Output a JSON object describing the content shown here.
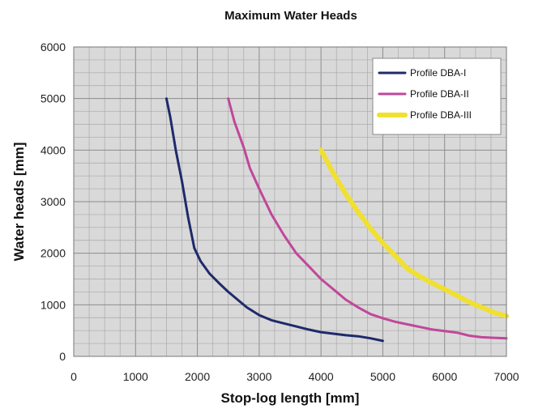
{
  "chart_data": {
    "type": "line",
    "title": "Maximum Water Heads",
    "xlabel": "Stop-log length [mm]",
    "ylabel": "Water heads [mm]",
    "xlim": [
      0,
      7000
    ],
    "ylim": [
      0,
      6000
    ],
    "x_ticks": [
      "0",
      "1000",
      "2000",
      "3000",
      "4000",
      "5000",
      "6000",
      "7000"
    ],
    "y_ticks": [
      "0",
      "1000",
      "2000",
      "3000",
      "4000",
      "5000",
      "6000"
    ],
    "grid": true,
    "legend_position": "top-right",
    "background": "#d9d9d9",
    "series": [
      {
        "name": "Profile DBA-I",
        "color": "#1f2a6b",
        "x": [
          1500,
          1560,
          1650,
          1750,
          1850,
          1950,
          2050,
          2200,
          2350,
          2500,
          2650,
          2800,
          3000,
          3200,
          3400,
          3600,
          3800,
          4000,
          4200,
          4400,
          4600,
          4800,
          5000
        ],
        "y": [
          5000,
          4650,
          4000,
          3400,
          2700,
          2100,
          1850,
          1600,
          1420,
          1250,
          1100,
          950,
          800,
          700,
          640,
          580,
          520,
          470,
          440,
          410,
          390,
          350,
          300
        ]
      },
      {
        "name": "Profile DBA-II",
        "color": "#c0479a",
        "x": [
          2500,
          2600,
          2750,
          2850,
          3000,
          3200,
          3400,
          3600,
          3800,
          4000,
          4200,
          4400,
          4600,
          4800,
          5000,
          5200,
          5400,
          5600,
          5800,
          6000,
          6200,
          6400,
          6600,
          6800,
          7000
        ],
        "y": [
          5000,
          4550,
          4050,
          3650,
          3250,
          2750,
          2350,
          2000,
          1750,
          1500,
          1300,
          1100,
          950,
          820,
          740,
          670,
          620,
          570,
          520,
          490,
          460,
          400,
          370,
          360,
          350
        ]
      },
      {
        "name": "Profile DBA-III",
        "color": "#f0e030",
        "x": [
          4000,
          4200,
          4400,
          4600,
          4800,
          5000,
          5200,
          5400,
          5600,
          5800,
          6000,
          6200,
          6400,
          6600,
          6800,
          7000
        ],
        "y": [
          4000,
          3550,
          3150,
          2800,
          2480,
          2200,
          1950,
          1700,
          1550,
          1420,
          1300,
          1180,
          1050,
          950,
          850,
          780
        ]
      }
    ]
  }
}
